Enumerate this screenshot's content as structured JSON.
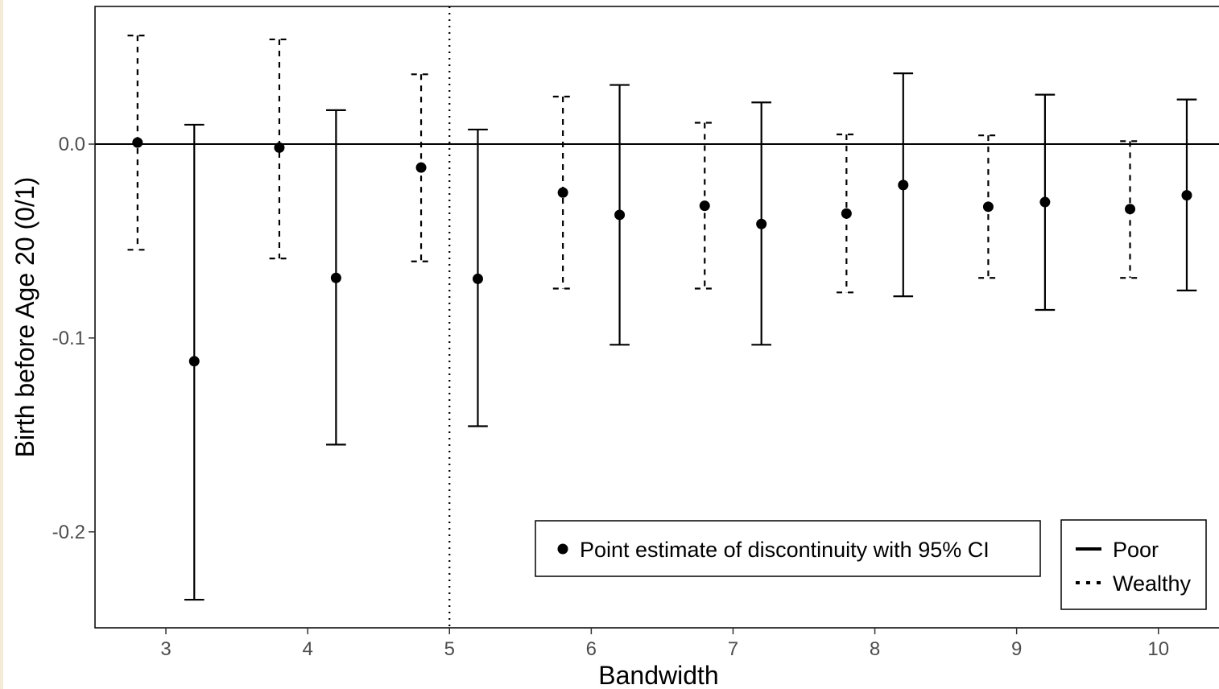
{
  "chart_data": {
    "type": "errorbar",
    "xlabel": "Bandwidth",
    "ylabel": "Birth before Age 20 (0/1)",
    "x_ticks": [
      "3",
      "4",
      "5",
      "6",
      "7",
      "8",
      "9",
      "10"
    ],
    "y_ticks": [
      "0.0",
      "-0.1",
      "-0.2"
    ],
    "xlim": [
      2.5,
      10.45
    ],
    "ylim": [
      -0.2495,
      0.071
    ],
    "reference_hline": 0.0,
    "reference_vline": 5,
    "grid": false,
    "series": [
      {
        "name": "Poor",
        "line_style": "solid",
        "x": [
          3,
          4,
          5,
          6,
          7,
          8,
          9,
          10
        ],
        "estimate": [
          -0.112,
          -0.069,
          -0.0695,
          -0.0365,
          -0.0412,
          -0.0211,
          -0.0299,
          -0.0264
        ],
        "ci_low": [
          -0.235,
          -0.155,
          -0.1455,
          -0.1035,
          -0.1035,
          -0.0785,
          -0.0855,
          -0.0755
        ],
        "ci_high": [
          0.01,
          0.0175,
          0.0075,
          0.0305,
          0.0215,
          0.0365,
          0.0255,
          0.023
        ]
      },
      {
        "name": "Wealthy",
        "line_style": "dashed",
        "x": [
          3,
          4,
          5,
          6,
          7,
          8,
          9,
          10
        ],
        "estimate": [
          0.0008,
          -0.0018,
          -0.0121,
          -0.025,
          -0.0318,
          -0.0358,
          -0.0323,
          -0.0335
        ],
        "ci_low": [
          -0.0545,
          -0.059,
          -0.0605,
          -0.0745,
          -0.0745,
          -0.0765,
          -0.069,
          -0.069
        ],
        "ci_high": [
          0.056,
          0.054,
          0.036,
          0.0245,
          0.011,
          0.005,
          0.0045,
          0.0015
        ]
      }
    ],
    "legend_marker": "Point estimate of discontinuity with 95% CI",
    "legend_lines": [
      "Poor",
      "Wealthy"
    ],
    "legend_position": "bottom-right"
  }
}
